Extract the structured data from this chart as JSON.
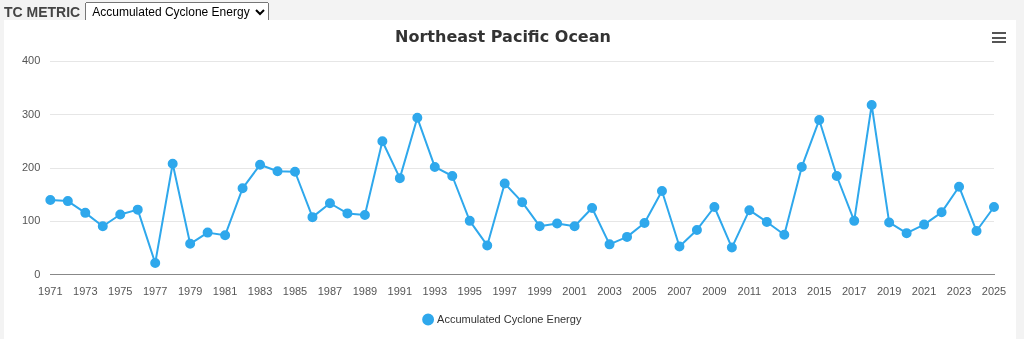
{
  "chart_data": {
    "type": "line",
    "title": "Northeast Pacific Ocean",
    "annotations": [
      "TC METRIC",
      "Accumulated Cyclone Energy"
    ],
    "categories": [
      "1971",
      null,
      "1973",
      null,
      "1975",
      null,
      "1977",
      null,
      "1979",
      null,
      "1981",
      null,
      "1983",
      null,
      "1985",
      null,
      "1987",
      null,
      "1989",
      null,
      "1991",
      null,
      "1993",
      null,
      "1995",
      null,
      "1997",
      null,
      "1999",
      null,
      "2001",
      null,
      "2003",
      null,
      "2005",
      null,
      "2007",
      null,
      "2009",
      null,
      "2011",
      null,
      "2013",
      null,
      "2015",
      null,
      "2017",
      null,
      "2019",
      null,
      "2021",
      null,
      "2023",
      null,
      "2025"
    ],
    "series": [
      {
        "name": "Accumulated Cyclone Energy",
        "color": "#2fa8ec",
        "values": [
          140,
          138,
          116,
          91,
          113,
          122,
          22,
          208,
          58,
          79,
          74,
          162,
          206,
          194,
          193,
          108,
          134,
          115,
          112,
          250,
          181,
          294,
          202,
          185,
          101,
          55,
          171,
          136,
          91,
          96,
          91,
          125,
          57,
          71,
          97,
          157,
          53,
          84,
          127,
          51,
          121,
          99,
          75,
          202,
          290,
          185,
          101,
          318,
          98,
          78,
          94,
          117,
          165,
          82,
          127
        ]
      }
    ],
    "ylim": [
      0,
      400
    ],
    "yticks": [
      0,
      100,
      200,
      300,
      400
    ],
    "grid": "y",
    "legend": "bottom",
    "marker": "circle",
    "line_style": "solid"
  }
}
